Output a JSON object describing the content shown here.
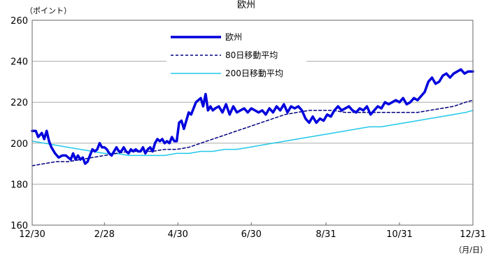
{
  "chart_data": {
    "type": "line",
    "title": "欧州",
    "ylabel": "（ポイント）",
    "xlabel": "（月/日）",
    "ylim": [
      160,
      260
    ],
    "yticks": [
      160,
      180,
      200,
      220,
      240,
      260
    ],
    "xlim": [
      0,
      366
    ],
    "xticks": [
      {
        "label": "12/30",
        "x": 0
      },
      {
        "label": "2/28",
        "x": 60
      },
      {
        "label": "4/30",
        "x": 121
      },
      {
        "label": "6/30",
        "x": 182
      },
      {
        "label": "8/31",
        "x": 244
      },
      {
        "label": "10/31",
        "x": 305
      },
      {
        "label": "12/31",
        "x": 366
      }
    ],
    "grid": true,
    "legend_position": "top-center",
    "series": [
      {
        "name": "欧州",
        "color": "#0000dd",
        "style": "solid-thick",
        "x": [
          0,
          3,
          5,
          8,
          10,
          12,
          14,
          16,
          19,
          22,
          25,
          28,
          30,
          32,
          34,
          36,
          38,
          40,
          42,
          44,
          46,
          48,
          50,
          52,
          54,
          56,
          58,
          60,
          62,
          64,
          66,
          68,
          70,
          72,
          74,
          76,
          78,
          80,
          82,
          84,
          86,
          88,
          90,
          92,
          94,
          96,
          98,
          100,
          102,
          104,
          106,
          108,
          110,
          112,
          114,
          116,
          118,
          120,
          122,
          124,
          126,
          128,
          130,
          132,
          134,
          136,
          138,
          140,
          142,
          144,
          146,
          148,
          150,
          152,
          155,
          158,
          161,
          164,
          167,
          170,
          173,
          176,
          179,
          182,
          185,
          188,
          191,
          194,
          197,
          200,
          203,
          206,
          209,
          212,
          215,
          218,
          221,
          224,
          227,
          230,
          233,
          236,
          239,
          242,
          245,
          248,
          251,
          254,
          257,
          260,
          263,
          266,
          269,
          272,
          275,
          278,
          281,
          284,
          287,
          290,
          293,
          296,
          299,
          302,
          305,
          308,
          311,
          314,
          317,
          320,
          323,
          326,
          329,
          332,
          335,
          338,
          341,
          344,
          347,
          350,
          353,
          356,
          359,
          362,
          364,
          366
        ],
        "values": [
          206,
          206,
          203,
          205,
          202,
          206,
          201,
          198,
          195,
          193,
          194,
          194,
          193,
          192,
          195,
          192,
          194,
          192,
          193,
          190,
          191,
          194,
          197,
          196,
          197,
          200,
          198,
          198,
          197,
          195,
          194,
          196,
          198,
          196,
          196,
          198,
          196,
          195,
          197,
          196,
          197,
          196,
          196,
          198,
          195,
          197,
          198,
          196,
          200,
          202,
          201,
          202,
          200,
          201,
          200,
          203,
          201,
          201,
          210,
          211,
          207,
          211,
          215,
          214,
          217,
          220,
          221,
          222,
          218,
          224,
          216,
          218,
          216,
          217,
          218,
          215,
          219,
          214,
          218,
          215,
          216,
          217,
          215,
          217,
          216,
          215,
          216,
          214,
          217,
          215,
          218,
          216,
          219,
          215,
          218,
          217,
          218,
          216,
          212,
          210,
          213,
          210,
          212,
          211,
          214,
          213,
          216,
          218,
          216,
          217,
          218,
          216,
          215,
          217,
          216,
          218,
          214,
          216,
          218,
          217,
          220,
          219,
          220,
          221,
          220,
          222,
          219,
          220,
          222,
          221,
          223,
          225,
          230,
          232,
          229,
          230,
          233,
          234,
          232,
          234,
          235,
          236,
          234,
          235,
          235,
          235
        ],
        "values_note": "approximate"
      },
      {
        "name": "80日移動平均",
        "color": "#000080",
        "style": "dashed",
        "x": [
          0,
          10,
          20,
          30,
          40,
          50,
          60,
          70,
          80,
          90,
          100,
          110,
          120,
          130,
          140,
          150,
          160,
          170,
          180,
          190,
          200,
          210,
          220,
          230,
          240,
          250,
          260,
          270,
          280,
          290,
          300,
          310,
          320,
          330,
          340,
          350,
          360,
          366
        ],
        "values": [
          189,
          190,
          191,
          191,
          192,
          193,
          194,
          195,
          196,
          196,
          196,
          197,
          197,
          198,
          200,
          202,
          204,
          206,
          208,
          210,
          212,
          214,
          215,
          216,
          216,
          216,
          215,
          215,
          215,
          215,
          215,
          215,
          215,
          216,
          217,
          218,
          220,
          221
        ]
      },
      {
        "name": "200日移動平均",
        "color": "#22c8e8",
        "style": "solid-thin",
        "x": [
          0,
          10,
          20,
          30,
          40,
          50,
          60,
          70,
          80,
          90,
          100,
          110,
          120,
          130,
          140,
          150,
          160,
          170,
          180,
          190,
          200,
          210,
          220,
          230,
          240,
          250,
          260,
          270,
          280,
          290,
          300,
          310,
          320,
          330,
          340,
          350,
          360,
          366
        ],
        "values": [
          201,
          200,
          199,
          198,
          197,
          196,
          195,
          195,
          194,
          194,
          194,
          194,
          195,
          195,
          196,
          196,
          197,
          197,
          198,
          199,
          200,
          201,
          202,
          203,
          204,
          205,
          206,
          207,
          208,
          208,
          209,
          210,
          211,
          212,
          213,
          214,
          215,
          216
        ]
      }
    ]
  }
}
